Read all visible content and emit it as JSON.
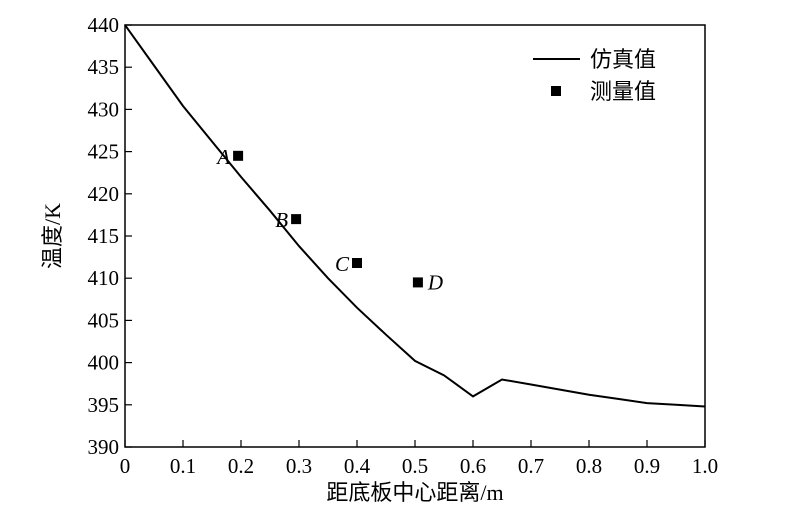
{
  "chart_data": {
    "type": "line",
    "xlabel": "距底板中心距离/m",
    "ylabel": "温度/K",
    "xlim": [
      0,
      1.0
    ],
    "ylim": [
      390,
      440
    ],
    "x_ticks": [
      "0",
      "0.1",
      "0.2",
      "0.3",
      "0.4",
      "0.5",
      "0.6",
      "0.7",
      "0.8",
      "0.9",
      "1.0"
    ],
    "y_ticks": [
      "390",
      "395",
      "400",
      "405",
      "410",
      "415",
      "420",
      "425",
      "430",
      "435",
      "440"
    ],
    "grid": false,
    "legend_position": "top-right",
    "series": [
      {
        "name": "仿真值",
        "style": "line",
        "color": "#000000",
        "x": [
          0,
          0.05,
          0.1,
          0.15,
          0.2,
          0.25,
          0.3,
          0.35,
          0.4,
          0.45,
          0.5,
          0.55,
          0.6,
          0.65,
          0.7,
          0.75,
          0.8,
          0.85,
          0.9,
          0.95,
          1.0
        ],
        "y": [
          440,
          435.2,
          430.4,
          426.2,
          422.0,
          418.0,
          413.8,
          410.0,
          406.5,
          403.3,
          400.2,
          398.5,
          396.0,
          398.0,
          397.4,
          396.8,
          396.2,
          395.7,
          395.2,
          395.0,
          394.8
        ]
      },
      {
        "name": "测量值",
        "style": "scatter",
        "color": "#000000",
        "points": [
          {
            "label": "A",
            "x": 0.195,
            "y": 424.5
          },
          {
            "label": "B",
            "x": 0.295,
            "y": 417.0
          },
          {
            "label": "C",
            "x": 0.4,
            "y": 411.8
          },
          {
            "label": "D",
            "x": 0.505,
            "y": 409.5
          }
        ]
      }
    ]
  }
}
